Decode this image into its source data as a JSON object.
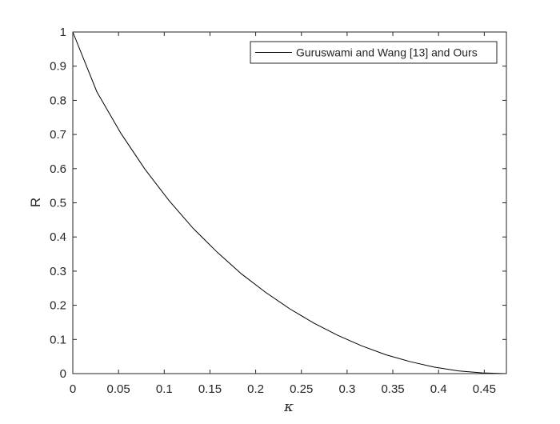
{
  "chart_data": {
    "type": "line",
    "title": "",
    "xlabel": "κ",
    "ylabel": "R",
    "xlim": [
      0,
      0.4742
    ],
    "ylim": [
      0,
      1
    ],
    "grid": false,
    "legend_position": "top-right",
    "x_ticks": [
      "0",
      "0.05",
      "0.1",
      "0.15",
      "0.2",
      "0.25",
      "0.3",
      "0.35",
      "0.4",
      "0.45"
    ],
    "y_ticks": [
      "0",
      "0.1",
      "0.2",
      "0.3",
      "0.4",
      "0.5",
      "0.6",
      "0.7",
      "0.8",
      "0.9",
      "1"
    ],
    "line_color": "#000000",
    "series": [
      {
        "name": "Guruswami and Wang [13] and Ours",
        "x": [
          0,
          0.0263,
          0.0527,
          0.079,
          0.1054,
          0.1317,
          0.1581,
          0.1844,
          0.2108,
          0.2371,
          0.2635,
          0.2898,
          0.3162,
          0.3425,
          0.3689,
          0.3952,
          0.4216,
          0.4479,
          0.4742
        ],
        "values": [
          1.0,
          0.825,
          0.703,
          0.598,
          0.506,
          0.425,
          0.355,
          0.292,
          0.238,
          0.19,
          0.148,
          0.112,
          0.081,
          0.055,
          0.035,
          0.019,
          0.008,
          0.002,
          0.0
        ]
      }
    ]
  }
}
